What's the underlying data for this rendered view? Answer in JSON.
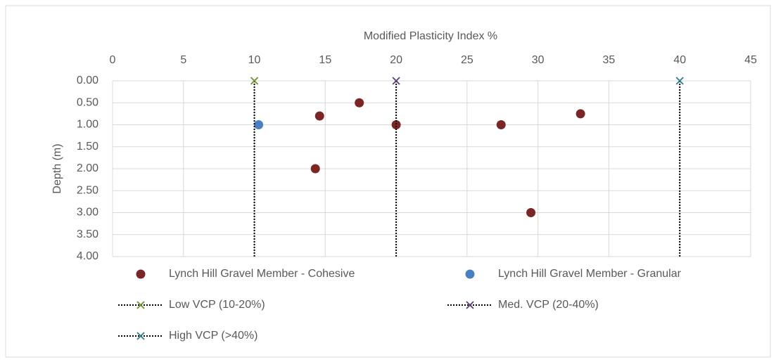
{
  "chart_data": {
    "type": "scatter",
    "x_label": "Modified Plasticity Index %",
    "y_label": "Depth (m)",
    "xlim": [
      0,
      45
    ],
    "xticks": [
      0,
      5,
      10,
      15,
      20,
      25,
      30,
      35,
      40,
      45
    ],
    "ylim": [
      0,
      4
    ],
    "y_inverted": true,
    "yticks": [
      {
        "value": 0,
        "label": "0.00"
      },
      {
        "value": 0.5,
        "label": "0.50"
      },
      {
        "value": 1,
        "label": "1.00"
      },
      {
        "value": 1.5,
        "label": "1.50"
      },
      {
        "value": 2,
        "label": "2.00"
      },
      {
        "value": 2.5,
        "label": "2.50"
      },
      {
        "value": 3,
        "label": "3.00"
      },
      {
        "value": 3.5,
        "label": "3.50"
      },
      {
        "value": 4,
        "label": "4.00"
      }
    ],
    "grid": true,
    "legend": "bottom",
    "series": [
      {
        "name": "Lynch Hill Gravel Member - Cohesive",
        "color": "#7b2626",
        "marker": "circle",
        "line": false,
        "x": [
          17.4,
          14.6,
          20.0,
          27.4,
          33.0,
          14.3,
          29.5
        ],
        "y": [
          0.5,
          0.8,
          1.0,
          1.0,
          0.75,
          2.0,
          3.0
        ]
      },
      {
        "name": "Lynch Hill Gravel Member - Granular",
        "color": "#4a7fc1",
        "marker": "circle",
        "line": false,
        "x": [
          10.3
        ],
        "y": [
          1.0
        ]
      },
      {
        "name": "Low VCP (10-20%)",
        "color": "#6f8f2f",
        "marker": "x",
        "line": true,
        "x": [
          10,
          10
        ],
        "y": [
          0,
          4
        ]
      },
      {
        "name": "Med. VCP (20-40%)",
        "color": "#5a3d7a",
        "marker": "x",
        "line": true,
        "x": [
          20,
          20
        ],
        "y": [
          0,
          4
        ]
      },
      {
        "name": "High VCP (>40%)",
        "color": "#2f7d8c",
        "marker": "x",
        "line": true,
        "x": [
          40,
          40
        ],
        "y": [
          0,
          4
        ]
      }
    ]
  }
}
